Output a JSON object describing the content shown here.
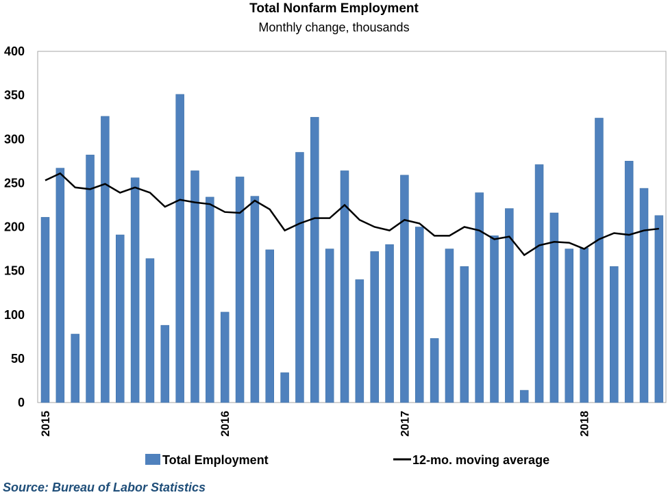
{
  "chart_data": {
    "type": "bar",
    "title": "Total Nonfarm Employment",
    "subtitle": "Monthly change,  thousands",
    "source": "Source: Bureau of Labor Statistics",
    "ylim": [
      0,
      400
    ],
    "yticks": [
      0,
      50,
      100,
      150,
      200,
      250,
      300,
      350,
      400
    ],
    "xtick_labels": [
      "2015",
      "2016",
      "2017",
      "2018"
    ],
    "grid": false,
    "legend_placement": "bottom",
    "colors": {
      "bars": "#4f81bd",
      "line": "#000000"
    },
    "months": [
      "2015-01",
      "2015-02",
      "2015-03",
      "2015-04",
      "2015-05",
      "2015-06",
      "2015-07",
      "2015-08",
      "2015-09",
      "2015-10",
      "2015-11",
      "2015-12",
      "2016-01",
      "2016-02",
      "2016-03",
      "2016-04",
      "2016-05",
      "2016-06",
      "2016-07",
      "2016-08",
      "2016-09",
      "2016-10",
      "2016-11",
      "2016-12",
      "2017-01",
      "2017-02",
      "2017-03",
      "2017-04",
      "2017-05",
      "2017-06",
      "2017-07",
      "2017-08",
      "2017-09",
      "2017-10",
      "2017-11",
      "2017-12",
      "2018-01",
      "2018-02",
      "2018-03",
      "2018-04",
      "2018-05",
      "2018-06"
    ],
    "series": [
      {
        "name": "Total Employment",
        "type": "bar",
        "values": [
          211,
          267,
          78,
          282,
          326,
          191,
          256,
          164,
          88,
          351,
          264,
          234,
          103,
          257,
          235,
          174,
          34,
          285,
          325,
          175,
          264,
          140,
          172,
          180,
          259,
          200,
          73,
          175,
          155,
          239,
          190,
          221,
          14,
          271,
          216,
          175,
          176,
          324,
          155,
          275,
          244,
          213
        ]
      },
      {
        "name": "12-mo. moving average",
        "type": "line",
        "values": [
          253,
          261,
          245,
          243,
          249,
          239,
          245,
          239,
          223,
          231,
          228,
          226,
          217,
          216,
          230,
          220,
          196,
          204,
          210,
          210,
          225,
          208,
          200,
          196,
          208,
          204,
          190,
          190,
          200,
          196,
          186,
          189,
          168,
          179,
          183,
          182,
          175,
          186,
          193,
          191,
          196,
          198
        ]
      }
    ]
  }
}
